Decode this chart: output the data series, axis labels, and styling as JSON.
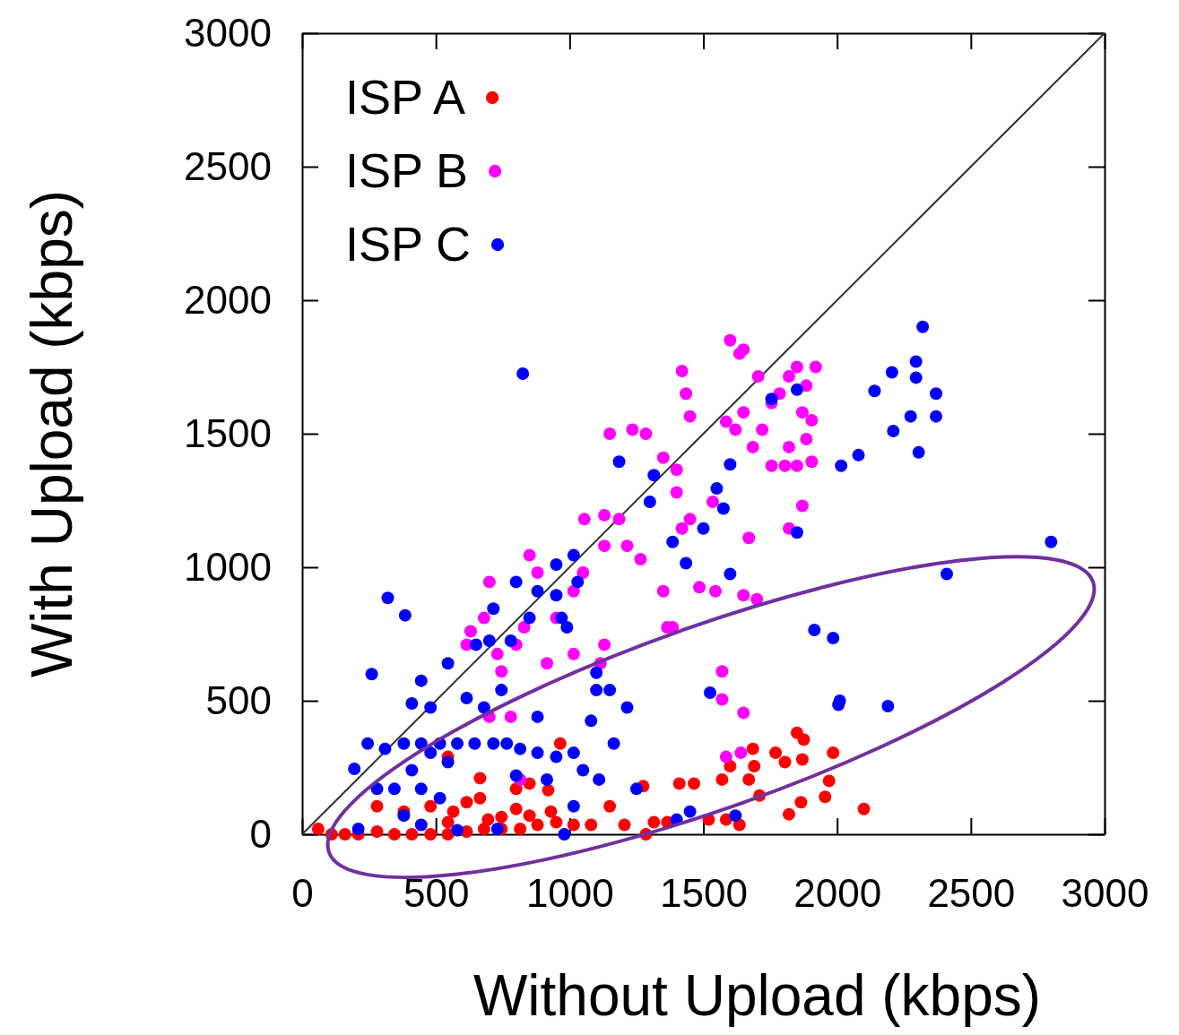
{
  "chart_data": {
    "type": "scatter",
    "xlabel": "Without Upload (kbps)",
    "ylabel": "With Upload (kbps)",
    "xlim": [
      0,
      3000
    ],
    "ylim": [
      0,
      3000
    ],
    "xticks": [
      0,
      500,
      1000,
      1500,
      2000,
      2500,
      3000
    ],
    "yticks": [
      0,
      500,
      1000,
      1500,
      2000,
      2500,
      3000
    ],
    "grid": false,
    "legend": "top left",
    "marker": "circle",
    "series": [
      {
        "name": "ISP A",
        "color": "#ff0000",
        "x": [
          60,
          110,
          160,
          210,
          280,
          345,
          410,
          480,
          545,
          615,
          680,
          745,
          815,
          880,
          950,
          1015,
          280,
          565,
          615,
          665,
          695,
          665,
          545,
          800,
          850,
          920,
          965,
          1150,
          1205,
          1275,
          1315,
          1365,
          1410,
          1465,
          1520,
          1570,
          1585,
          1600,
          1635,
          1690,
          1685,
          1670,
          1710,
          1770,
          1805,
          1850,
          1875,
          1870,
          1820,
          1865,
          1955,
          1970,
          1985,
          2100,
          480,
          850,
          380,
          800,
          745,
          545,
          930,
          1080,
          1285
        ],
        "values": [
          20,
          0,
          0,
          0,
          10,
          0,
          0,
          0,
          0,
          10,
          20,
          20,
          20,
          35,
          45,
          35,
          105,
          85,
          120,
          135,
          55,
          210,
          290,
          170,
          70,
          165,
          340,
          105,
          35,
          180,
          45,
          45,
          190,
          190,
          55,
          205,
          55,
          255,
          35,
          255,
          320,
          205,
          145,
          305,
          270,
          380,
          355,
          280,
          75,
          120,
          140,
          200,
          305,
          95,
          105,
          190,
          85,
          95,
          65,
          45,
          85,
          35,
          0
        ]
      },
      {
        "name": "ISP B",
        "color": "#ff00ff",
        "x": [
          730,
          700,
          815,
          800,
          915,
          950,
          1015,
          1015,
          1130,
          1055,
          1185,
          1215,
          1265,
          1285,
          1235,
          1350,
          1385,
          1400,
          1400,
          1420,
          1450,
          1485,
          1535,
          1545,
          1570,
          1600,
          1635,
          1650,
          1420,
          1435,
          1450,
          1705,
          1720,
          1755,
          1785,
          1820,
          1850,
          1885,
          1905,
          1920,
          1870,
          1820,
          1805,
          1850,
          1885,
          1755,
          1650,
          1620,
          1685,
          1585,
          1905,
          1670,
          1650,
          1700,
          1870,
          1820,
          1650,
          1570,
          1640,
          1585,
          1365,
          1350,
          1130,
          1150,
          850,
          880,
          700,
          615,
          680,
          830,
          780,
          1050,
          1115,
          1130,
          745,
          630
        ],
        "values": [
          675,
          440,
          205,
          710,
          640,
          810,
          910,
          675,
          1080,
          1180,
          1180,
          1080,
          1030,
          1500,
          1515,
          910,
          775,
          1280,
          1365,
          1145,
          1180,
          925,
          1245,
          910,
          610,
          1850,
          1800,
          1815,
          1735,
          1650,
          1565,
          1715,
          1515,
          1380,
          1650,
          1715,
          1750,
          1680,
          1550,
          1750,
          1580,
          1450,
          1380,
          1380,
          1480,
          1615,
          1580,
          1515,
          1450,
          1545,
          1395,
          1110,
          895,
          880,
          1230,
          1145,
          455,
          505,
          305,
          290,
          775,
          1410,
          1195,
          1500,
          1045,
          980,
          945,
          710,
          810,
          775,
          440,
          980,
          640,
          710,
          610,
          760
        ]
      },
      {
        "name": "ISP C",
        "color": "#0000ff",
        "x": [
          825,
          320,
          385,
          260,
          195,
          245,
          310,
          345,
          280,
          410,
          445,
          480,
          545,
          615,
          650,
          715,
          700,
          800,
          880,
          950,
          1015,
          1030,
          950,
          970,
          990,
          850,
          780,
          380,
          445,
          515,
          580,
          645,
          715,
          765,
          815,
          880,
          950,
          1015,
          1080,
          1150,
          1215,
          1165,
          1110,
          915,
          1050,
          800,
          515,
          380,
          445,
          210,
          580,
          730,
          980,
          410,
          445,
          545,
          480,
          680,
          745,
          880,
          1100,
          1185,
          1300,
          1315,
          1385,
          1435,
          1500,
          1550,
          1600,
          1575,
          1600,
          1755,
          1850,
          1850,
          2015,
          2080,
          2140,
          2205,
          2210,
          2275,
          2295,
          2295,
          2320,
          2370,
          2370,
          2305,
          2410,
          2800,
          1915,
          1985,
          2005,
          2010,
          2190,
          1525,
          1620,
          1450,
          1400,
          1250,
          1100,
          1015
        ],
        "values": [
          1725,
          885,
          820,
          600,
          245,
          340,
          320,
          170,
          170,
          490,
          575,
          475,
          640,
          510,
          710,
          845,
          725,
          945,
          910,
          1010,
          1045,
          945,
          895,
          810,
          775,
          810,
          725,
          340,
          340,
          340,
          340,
          340,
          340,
          340,
          320,
          305,
          290,
          305,
          425,
          540,
          475,
          340,
          205,
          205,
          240,
          220,
          135,
          70,
          35,
          20,
          15,
          20,
          0,
          240,
          170,
          270,
          305,
          475,
          540,
          440,
          605,
          1395,
          1245,
          1345,
          1095,
          1015,
          1145,
          1295,
          1385,
          1220,
          975,
          1630,
          1665,
          1130,
          1380,
          1420,
          1660,
          1730,
          1510,
          1565,
          1710,
          1770,
          1900,
          1650,
          1565,
          1430,
          975,
          1095,
          765,
          735,
          485,
          500,
          480,
          530,
          70,
          85,
          55,
          170,
          540,
          105
        ]
      },
      {
        "type": "line",
        "color": "#333333",
        "marker": "none",
        "x": [
          0,
          3000
        ],
        "values": [
          0,
          3000
        ]
      }
    ]
  }
}
